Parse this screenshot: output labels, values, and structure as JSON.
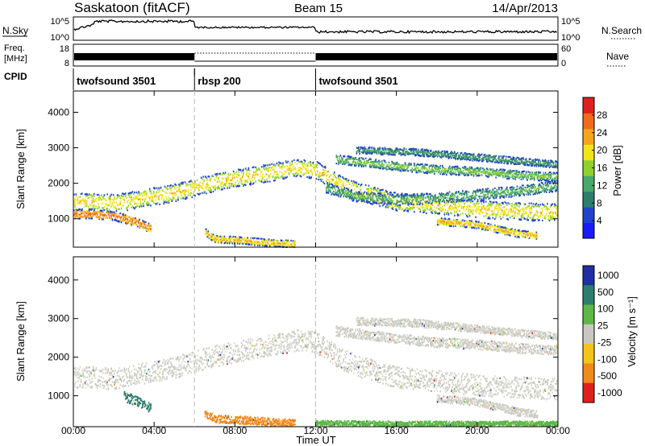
{
  "header": {
    "station": "Saskatoon (fitACF)",
    "beam": "Beam 15",
    "date": "14/Apr/2013"
  },
  "nsky_panel": {
    "left_label": "N.Sky",
    "right_label": "N.Search",
    "left_ticks": [
      "10^5",
      "10^0"
    ],
    "right_ticks": [
      "10^5",
      "10^0"
    ]
  },
  "freq_panel": {
    "left_label_1": "Freq.",
    "left_label_2": "[MHz]",
    "right_label": "Nave",
    "left_ticks": [
      "18",
      "8"
    ],
    "right_ticks": [
      "60",
      "0"
    ]
  },
  "cpid_panel": {
    "label": "CPID",
    "segments": [
      {
        "name": "twofsound 3501",
        "start": 0,
        "end": 6
      },
      {
        "name": "rbsp 200",
        "start": 6,
        "end": 12
      },
      {
        "name": "twofsound 3501",
        "start": 12,
        "end": 24
      }
    ]
  },
  "time_axis": {
    "label": "Time UT",
    "ticks": [
      "00:00",
      "04:00",
      "08:00",
      "12:00",
      "16:00",
      "20:00",
      "00:00"
    ],
    "tick_hours": [
      0,
      4,
      8,
      12,
      16,
      20,
      24
    ],
    "range_hours": [
      0,
      24
    ],
    "markers_hours": [
      6,
      12
    ]
  },
  "colors": {
    "power": [
      "#1a1aff",
      "#2244cc",
      "#2e7d6e",
      "#4aa86a",
      "#8fd12f",
      "#f2e51a",
      "#f5a51c",
      "#f06a1c",
      "#e0201e"
    ],
    "velocity": [
      "#2030a0",
      "#2e7d6e",
      "#5cb848",
      "#c8c8c0",
      "#f2c51a",
      "#f08a1c",
      "#e0201e"
    ]
  },
  "chart_data": [
    {
      "type": "heatmap",
      "name": "power-panel",
      "ylabel": "Slant Range [km]",
      "ylim": [
        200,
        4600
      ],
      "yticks": [
        1000,
        2000,
        3000,
        4000
      ],
      "colorbar": {
        "label": "Power [dB]",
        "range": [
          0,
          32
        ],
        "ticks": [
          4,
          8,
          12,
          16,
          20,
          24,
          28
        ]
      },
      "bands": [
        {
          "h": [
            0,
            1,
            2,
            3,
            4,
            5,
            6,
            7,
            8,
            9,
            10,
            11,
            12,
            13,
            14,
            15,
            16,
            17,
            18,
            19,
            20,
            21,
            22,
            23,
            24
          ],
          "km": [
            1500,
            1500,
            1450,
            1550,
            1650,
            1750,
            1900,
            2050,
            2150,
            2250,
            2350,
            2450,
            2400,
            2050,
            1800,
            1650,
            1500,
            1450,
            1400,
            1350,
            1300,
            1250,
            1250,
            1200,
            1200
          ],
          "width_km": 500,
          "power": 18
        },
        {
          "h": [
            0,
            1,
            2,
            3,
            3.8
          ],
          "km": [
            1150,
            1150,
            1100,
            950,
            750
          ],
          "width_km": 250,
          "power": 24
        },
        {
          "h": [
            6.5,
            7,
            8,
            9,
            10,
            11
          ],
          "km": [
            650,
            450,
            420,
            380,
            330,
            320
          ],
          "width_km": 200,
          "power": 20
        },
        {
          "h": [
            12.5,
            14,
            16,
            18,
            20,
            22,
            24
          ],
          "km": [
            1900,
            1650,
            1550,
            1600,
            1700,
            1800,
            1950
          ],
          "width_km": 300,
          "power": 10
        },
        {
          "h": [
            13,
            16,
            18,
            20,
            22,
            24
          ],
          "km": [
            2700,
            2500,
            2400,
            2350,
            2250,
            2200
          ],
          "width_km": 250,
          "power": 12
        },
        {
          "h": [
            14,
            17,
            20,
            22,
            24
          ],
          "km": [
            2950,
            2900,
            2750,
            2650,
            2550
          ],
          "width_km": 200,
          "power": 8
        },
        {
          "h": [
            18,
            20,
            22,
            23
          ],
          "km": [
            950,
            850,
            600,
            550
          ],
          "width_km": 200,
          "power": 20
        }
      ]
    },
    {
      "type": "heatmap",
      "name": "velocity-panel",
      "ylabel": "Slant Range [km]",
      "ylim": [
        200,
        4600
      ],
      "yticks": [
        1000,
        2000,
        3000,
        4000
      ],
      "colorbar": {
        "label": "Velocity [m s⁻¹]",
        "ticks": [
          "1000",
          "500",
          "100",
          "25",
          "-25",
          "-100",
          "-500",
          "-1000"
        ]
      },
      "bands": [
        {
          "h": [
            0,
            1,
            2,
            3,
            4,
            5,
            6,
            7,
            8,
            9,
            10,
            11,
            12,
            13,
            14,
            15,
            16,
            17,
            18,
            19,
            20,
            21,
            22,
            23,
            24
          ],
          "km": [
            1500,
            1500,
            1450,
            1550,
            1650,
            1750,
            1900,
            2050,
            2150,
            2250,
            2350,
            2450,
            2400,
            2050,
            1800,
            1650,
            1500,
            1450,
            1400,
            1350,
            1300,
            1250,
            1250,
            1200,
            1200
          ],
          "width_km": 550,
          "velocity": 0
        },
        {
          "h": [
            2.5,
            3,
            3.5,
            3.8
          ],
          "km": [
            1000,
            900,
            800,
            700
          ],
          "width_km": 250,
          "velocity": 300
        },
        {
          "h": [
            6.5,
            7,
            8,
            9,
            10,
            11
          ],
          "km": [
            550,
            420,
            400,
            370,
            330,
            320
          ],
          "width_km": 200,
          "velocity": -150
        },
        {
          "h": [
            12,
            14,
            16,
            18,
            20,
            22,
            24
          ],
          "km": [
            320,
            310,
            300,
            300,
            300,
            300,
            300
          ],
          "width_km": 120,
          "velocity": 60
        },
        {
          "h": [
            13,
            16,
            18,
            20,
            22,
            24
          ],
          "km": [
            2700,
            2500,
            2400,
            2350,
            2250,
            2200
          ],
          "width_km": 250,
          "velocity": 0
        },
        {
          "h": [
            14,
            17,
            20,
            22,
            24
          ],
          "km": [
            2950,
            2900,
            2750,
            2650,
            2550
          ],
          "width_km": 200,
          "velocity": 0
        },
        {
          "h": [
            18,
            20,
            22,
            23
          ],
          "km": [
            950,
            850,
            600,
            550
          ],
          "width_km": 200,
          "velocity": 0
        }
      ]
    }
  ]
}
